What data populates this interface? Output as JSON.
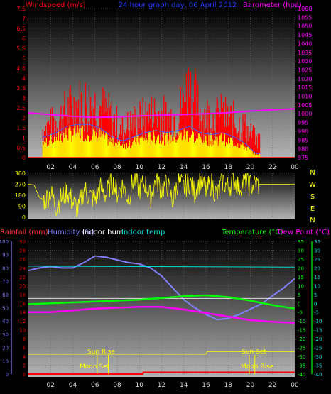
{
  "colors": {
    "background": "#000000",
    "wind_avg": "#ff0000",
    "wind_gust": "#ffff00",
    "wind_mean": "#3b5bff",
    "barometer": "#ff00ff",
    "direction": "#ffff00",
    "rainfall": "#ff0000",
    "humidity": "#8080ff",
    "indoor_hum": "#ffffff",
    "indoor_temp": "#00e0e0",
    "temperature": "#00ff00",
    "dew_point": "#ff00ff",
    "sunline": "#ffff00",
    "moonline": "#ffff00"
  },
  "header": {
    "title": "24 hour graph day, 06 April 2012"
  },
  "panels": {
    "wind": {
      "left_label": "Windspeed (m/s)",
      "right_label": "Barometer (hpa)"
    },
    "direction": {
      "right_axis": [
        "N",
        "W",
        "S",
        "E",
        "N"
      ]
    },
    "bottom": {
      "legend": [
        {
          "label": "Rainfall (mm)",
          "color_key": "rainfall"
        },
        {
          "label": "Humidity (%)",
          "color_key": "humidity"
        },
        {
          "label": "Indoor hum",
          "color_key": "indoor_hum"
        },
        {
          "label": "Indoor temp",
          "color_key": "indoor_temp"
        },
        {
          "label": "Temperature (°C)",
          "color_key": "temperature"
        },
        {
          "label": "Dew Point (°C)",
          "color_key": "dew_point"
        }
      ],
      "annotations": {
        "sun_rise": "Sun Rise",
        "moon_set": "Moon Set",
        "sun_set": "Sun Set",
        "moon_rise": "Moon Rise"
      }
    }
  },
  "chart_data": [
    {
      "type": "bar",
      "title": "24 hour graph day, 06 April 2012",
      "ylabel": "Windspeed (m/s)",
      "y2label": "Barometer (hpa)",
      "x_ticks": [
        "02",
        "04",
        "06",
        "08",
        "10",
        "12",
        "14",
        "16",
        "18",
        "20",
        "22",
        "00"
      ],
      "xlim": [
        0,
        24
      ],
      "ylim": [
        0,
        7.5
      ],
      "y_ticks": [
        "0",
        "0.5",
        "1",
        "1.5",
        "2",
        "2.5",
        "3",
        "3.5",
        "4",
        "4.5",
        "5",
        "5.5",
        "6",
        "6.5",
        "7",
        "7.5"
      ],
      "y2lim": [
        975,
        1060
      ],
      "y2_ticks": [
        "975",
        "980",
        "985",
        "990",
        "995",
        "1000",
        "1005",
        "1010",
        "1015",
        "1020",
        "1025",
        "1030",
        "1035",
        "1040",
        "1045",
        "1050",
        "1055",
        "1060"
      ],
      "series": [
        {
          "name": "Barometer (hpa)",
          "x": [
            0,
            2,
            4,
            6,
            8,
            10,
            12,
            14,
            16,
            18,
            20,
            22,
            24
          ],
          "values": [
            1000.5,
            999.5,
            998.5,
            998,
            998.2,
            998.8,
            999.2,
            999.6,
            1000,
            1000.6,
            1001.5,
            1002.2,
            1002.8
          ]
        },
        {
          "name": "Windspeed gust",
          "x": [
            1.5,
            2.5,
            3.5,
            4.5,
            5.5,
            6.5,
            7.5,
            8.5,
            9.5,
            10.5,
            11.5,
            12.5,
            13.5,
            14.5,
            15.5,
            16.5,
            17.5,
            18.5,
            19.5,
            20.5
          ],
          "values": [
            2.3,
            2.8,
            3.7,
            4.2,
            4.3,
            4.0,
            3.1,
            2.2,
            2.8,
            3.2,
            3.5,
            3.1,
            3.4,
            5.7,
            3.6,
            3.1,
            3.3,
            2.9,
            2.4,
            1.4
          ]
        },
        {
          "name": "Windspeed average",
          "x": [
            1.5,
            2.5,
            3.5,
            4.5,
            5.5,
            6.5,
            7.5,
            8.5,
            9.5,
            10.5,
            11.5,
            12.5,
            13.5,
            14.5,
            15.5,
            16.5,
            17.5,
            18.5,
            19.5,
            20.5
          ],
          "values": [
            1.0,
            1.2,
            1.5,
            1.6,
            1.6,
            1.4,
            1.0,
            0.8,
            1.0,
            1.2,
            1.3,
            1.2,
            1.3,
            1.5,
            1.2,
            1.1,
            1.2,
            1.0,
            0.7,
            0.2
          ]
        }
      ]
    },
    {
      "type": "line",
      "title": "",
      "ylabel": "",
      "x_ticks": [
        "02",
        "04",
        "06",
        "08",
        "10",
        "12",
        "14",
        "16",
        "18",
        "20",
        "22",
        "00"
      ],
      "xlim": [
        0,
        24
      ],
      "ylim": [
        0,
        360
      ],
      "y_ticks": [
        "0",
        "90",
        "180",
        "270",
        "360"
      ],
      "series": [
        {
          "name": "Wind direction",
          "x": [
            0,
            0.5,
            1,
            1.5,
            2,
            2.5,
            3,
            3.5,
            4,
            4.5,
            5,
            5.5,
            6,
            6.5,
            7,
            7.5,
            8,
            8.5,
            9,
            9.5,
            10,
            10.5,
            11,
            11.5,
            12,
            12.5,
            13,
            13.5,
            14,
            14.5,
            15,
            15.5,
            16,
            16.5,
            17,
            17.5,
            18,
            18.5,
            19,
            19.5,
            20,
            20.5,
            21,
            22,
            23,
            24
          ],
          "values": [
            270,
            265,
            160,
            140,
            200,
            90,
            160,
            210,
            120,
            60,
            230,
            170,
            150,
            240,
            180,
            300,
            200,
            260,
            150,
            320,
            230,
            280,
            160,
            310,
            230,
            270,
            130,
            300,
            240,
            290,
            200,
            310,
            220,
            280,
            170,
            300,
            240,
            310,
            250,
            300,
            260,
            270,
            270,
            270,
            270,
            270
          ]
        }
      ]
    },
    {
      "type": "line",
      "title": "",
      "x_ticks": [
        "02",
        "04",
        "06",
        "08",
        "10",
        "12",
        "14",
        "16",
        "18",
        "20",
        "22",
        "00"
      ],
      "xlim": [
        0,
        24
      ],
      "y_left_outer": {
        "label": "Humidity (%)",
        "ylim": [
          0,
          100
        ],
        "ticks": [
          "0",
          "10",
          "20",
          "30",
          "40",
          "50",
          "60",
          "70",
          "80",
          "90",
          "100"
        ]
      },
      "y_left_inner": {
        "label": "Rainfall (mm)",
        "ylim": [
          0,
          30
        ],
        "ticks": [
          "0",
          "2",
          "4",
          "6",
          "8",
          "10",
          "12",
          "14",
          "16",
          "18",
          "20",
          "22",
          "24",
          "26",
          "28",
          "30"
        ]
      },
      "y_right_inner": {
        "label": "Temperature (°C)",
        "ylim": [
          -40,
          35
        ],
        "ticks": [
          "35",
          "30",
          "25",
          "20",
          "15",
          "10",
          "5",
          "0",
          "-5",
          "-10",
          "-15",
          "-20",
          "-25",
          "-30",
          "-35",
          "-40"
        ]
      },
      "y_right_outer": {
        "label": "Dew Point (°C)",
        "ylim": [
          -40,
          35
        ],
        "ticks": [
          "35",
          "30",
          "25",
          "20",
          "15",
          "10",
          "5",
          "0",
          "-5",
          "-10",
          "-15",
          "-20",
          "-25",
          "-30",
          "-35",
          "-40"
        ]
      },
      "series": [
        {
          "name": "Humidity (%)",
          "axis": "humidity",
          "x": [
            0,
            1,
            2,
            3,
            4,
            5,
            6,
            7,
            8,
            9,
            10,
            11,
            12,
            13,
            14,
            15,
            16,
            17,
            18,
            19,
            20,
            21,
            22,
            23,
            24
          ],
          "values": [
            78,
            80,
            81,
            80,
            80,
            84,
            89,
            88,
            86,
            84,
            83,
            80,
            74,
            65,
            56,
            50,
            45,
            41,
            42,
            45,
            49,
            53,
            59,
            65,
            72
          ]
        },
        {
          "name": "Indoor hum",
          "axis": "humidity",
          "x": [
            0,
            24
          ],
          "values": [
            57,
            57
          ]
        },
        {
          "name": "Indoor temp",
          "axis": "temperature",
          "x": [
            0,
            24
          ],
          "values": [
            21,
            20.5
          ]
        },
        {
          "name": "Temperature (°C)",
          "axis": "temperature",
          "x": [
            0,
            2,
            4,
            6,
            8,
            10,
            12,
            14,
            16,
            18,
            20,
            22,
            24
          ],
          "values": [
            -0.5,
            0,
            0.5,
            1,
            1.5,
            2,
            3,
            4,
            4.5,
            3.5,
            1.5,
            -1,
            -3
          ]
        },
        {
          "name": "Dew Point (°C)",
          "axis": "temperature",
          "x": [
            0,
            2,
            4,
            6,
            8,
            10,
            12,
            14,
            16,
            18,
            20,
            22,
            24
          ],
          "values": [
            -5,
            -5,
            -4,
            -3,
            -2.5,
            -2,
            -2,
            -3.5,
            -5.5,
            -7.5,
            -9.5,
            -10.5,
            -11
          ]
        },
        {
          "name": "Rainfall (mm)",
          "axis": "rainfall",
          "x": [
            0,
            10.3,
            10.35,
            24
          ],
          "values": [
            0,
            0,
            0.4,
            0.4
          ]
        },
        {
          "name": "Daylight",
          "axis": "humidity",
          "x": [
            0,
            16,
            16.1,
            24
          ],
          "values": [
            15,
            15,
            17,
            17
          ]
        }
      ],
      "events": [
        {
          "label": "Sun Rise",
          "x": 6.2
        },
        {
          "label": "Moon Set",
          "x": 7.2
        },
        {
          "label": "Sun Set",
          "x": 19.9
        },
        {
          "label": "Moon Rise",
          "x": 20.4
        }
      ]
    }
  ]
}
